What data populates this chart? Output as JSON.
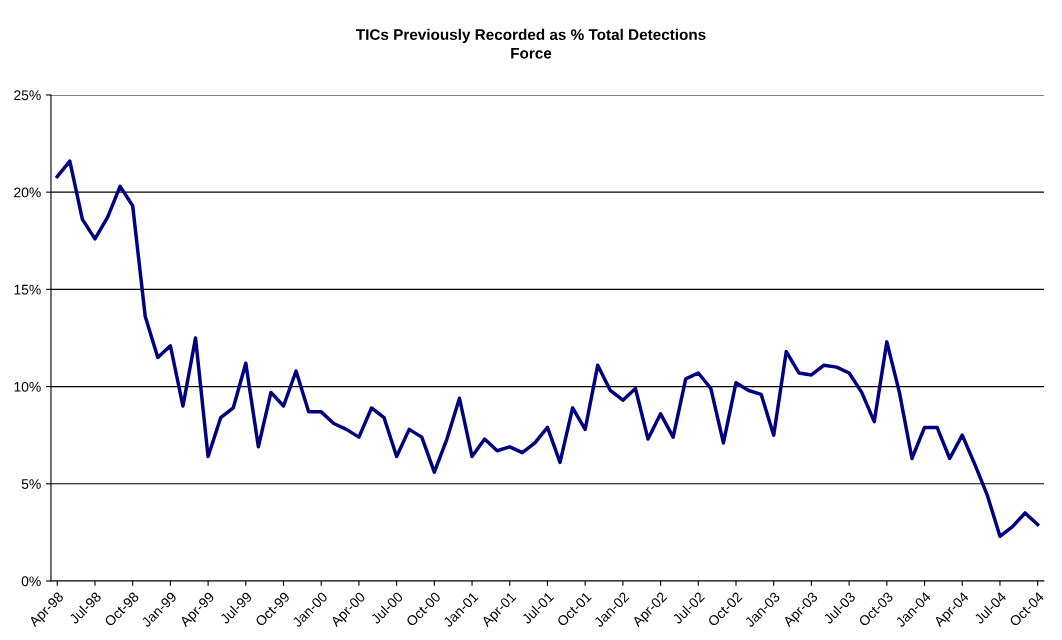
{
  "chart_data": {
    "type": "line",
    "title": "TICs Previously Recorded as % Total Detections\nForce",
    "categories": [
      "Apr-98",
      null,
      null,
      "Jul-98",
      null,
      null,
      "Oct-98",
      null,
      null,
      "Jan-99",
      null,
      null,
      "Apr-99",
      null,
      null,
      "Jul-99",
      null,
      null,
      "Oct-99",
      null,
      null,
      "Jan-00",
      null,
      null,
      "Apr-00",
      null,
      null,
      "Jul-00",
      null,
      null,
      "Oct-00",
      null,
      null,
      "Jan-01",
      null,
      null,
      "Apr-01",
      null,
      null,
      "Jul-01",
      null,
      null,
      "Oct-01",
      null,
      null,
      "Jan-02",
      null,
      null,
      "Apr-02",
      null,
      null,
      "Jul-02",
      null,
      null,
      "Oct-02",
      null,
      null,
      "Jan-03",
      null,
      null,
      "Apr-03",
      null,
      null,
      "Jul-03",
      null,
      null,
      "Oct-03",
      null,
      null,
      "Jan-04",
      null,
      null,
      "Apr-04",
      null,
      null,
      "Jul-04",
      null,
      null,
      "Oct-04"
    ],
    "series": [
      {
        "color": "#000080",
        "values": [
          20.8,
          21.6,
          18.6,
          17.6,
          18.7,
          20.3,
          19.3,
          13.6,
          11.5,
          12.1,
          9.0,
          12.5,
          6.4,
          8.4,
          8.9,
          11.2,
          6.9,
          9.7,
          9.0,
          10.8,
          8.7,
          8.7,
          8.1,
          7.8,
          7.4,
          8.9,
          8.4,
          6.4,
          7.8,
          7.4,
          5.6,
          7.3,
          9.4,
          6.4,
          7.3,
          6.7,
          6.9,
          6.6,
          7.1,
          7.9,
          6.1,
          8.9,
          7.8,
          11.1,
          9.8,
          9.3,
          9.9,
          7.3,
          8.6,
          7.4,
          10.4,
          10.7,
          9.9,
          7.1,
          10.2,
          9.8,
          9.6,
          7.5,
          11.8,
          10.7,
          10.6,
          11.1,
          11.0,
          10.7,
          9.7,
          8.2,
          12.3,
          9.7,
          6.3,
          7.9,
          7.9,
          6.3,
          7.5,
          6.0,
          4.4,
          2.3,
          2.8,
          3.5,
          2.9
        ]
      }
    ],
    "ylim": [
      0,
      25
    ],
    "yticks": [
      {
        "value": 0,
        "label": "0%"
      },
      {
        "value": 5,
        "label": "5%"
      },
      {
        "value": 10,
        "label": "10%"
      },
      {
        "value": 15,
        "label": "15%"
      },
      {
        "value": 20,
        "label": "20%"
      },
      {
        "value": 25,
        "label": "25%"
      }
    ],
    "grid": "y",
    "legend": false,
    "marker": "none",
    "line_style": "solid"
  }
}
